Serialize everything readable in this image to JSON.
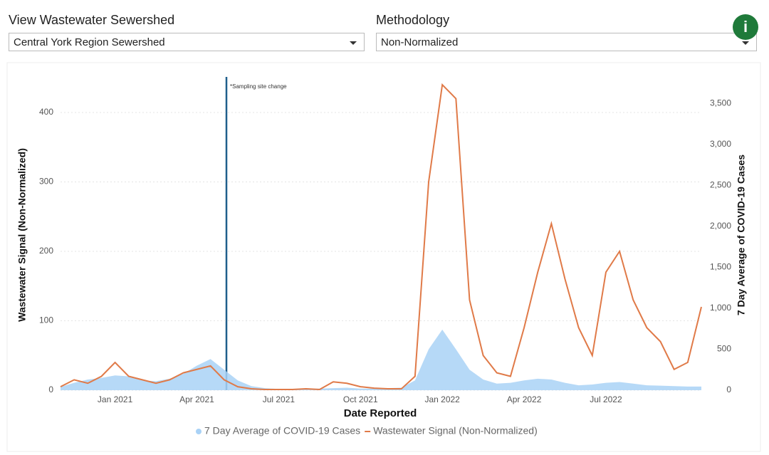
{
  "controls": {
    "sewershed_label": "View Wastewater Sewershed",
    "sewershed_value": "Central York Region Sewershed",
    "methodology_label": "Methodology",
    "methodology_value": "Non-Normalized",
    "info_icon": "i"
  },
  "chart_data": {
    "type": "line",
    "annotation": "*Sampling site change",
    "x_label": "Date Reported",
    "y_label": "Wastewater Signal (Non-Normalized)",
    "y2_label": "7 Day Average of COVID-19 Cases",
    "categories": [
      null,
      null,
      null,
      null,
      "Jan 2021",
      null,
      null,
      null,
      null,
      null,
      "Apr 2021",
      null,
      null,
      null,
      null,
      null,
      "Jul 2021",
      null,
      null,
      null,
      null,
      null,
      "Oct 2021",
      null,
      null,
      null,
      null,
      null,
      "Jan 2022",
      null,
      null,
      null,
      null,
      null,
      "Apr 2022",
      null,
      null,
      null,
      null,
      null,
      "Jul 2022",
      null,
      null,
      null,
      null,
      null,
      null,
      null
    ],
    "ylim": [
      0,
      440
    ],
    "yticks": [
      0,
      100,
      200,
      300,
      400
    ],
    "y2lim": [
      0,
      3730
    ],
    "y2ticks": [
      0,
      500,
      {
        "value": 1000,
        "label": "1,000"
      },
      {
        "value": 1500,
        "label": "1,500"
      },
      {
        "value": 2000,
        "label": "2,000"
      },
      {
        "value": 2500,
        "label": "2,500"
      },
      {
        "value": 3000,
        "label": "3,000"
      },
      {
        "value": 3500,
        "label": "3,500"
      }
    ],
    "grid": true,
    "series": [
      {
        "name": "7 Day Average of COVID-19 Cases",
        "kind": "area",
        "axis": "y2",
        "color": "#a9d2f6",
        "values": [
          40,
          90,
          130,
          150,
          180,
          170,
          120,
          110,
          140,
          200,
          300,
          380,
          250,
          120,
          50,
          25,
          15,
          12,
          15,
          20,
          25,
          30,
          20,
          20,
          25,
          30,
          120,
          500,
          740,
          500,
          250,
          130,
          80,
          90,
          120,
          140,
          130,
          90,
          60,
          70,
          90,
          100,
          80,
          60,
          55,
          50,
          45,
          45
        ]
      },
      {
        "name": "Wastewater Signal (Non-Normalized)",
        "kind": "line",
        "color": "#e07a48",
        "values": [
          5,
          15,
          10,
          20,
          40,
          20,
          15,
          10,
          15,
          25,
          30,
          35,
          15,
          5,
          2,
          1,
          1,
          1,
          2,
          1,
          12,
          10,
          5,
          3,
          2,
          2,
          20,
          300,
          440,
          420,
          130,
          50,
          25,
          20,
          90,
          170,
          240,
          160,
          90,
          50,
          170,
          200,
          130,
          90,
          70,
          30,
          40,
          120
        ]
      }
    ]
  }
}
